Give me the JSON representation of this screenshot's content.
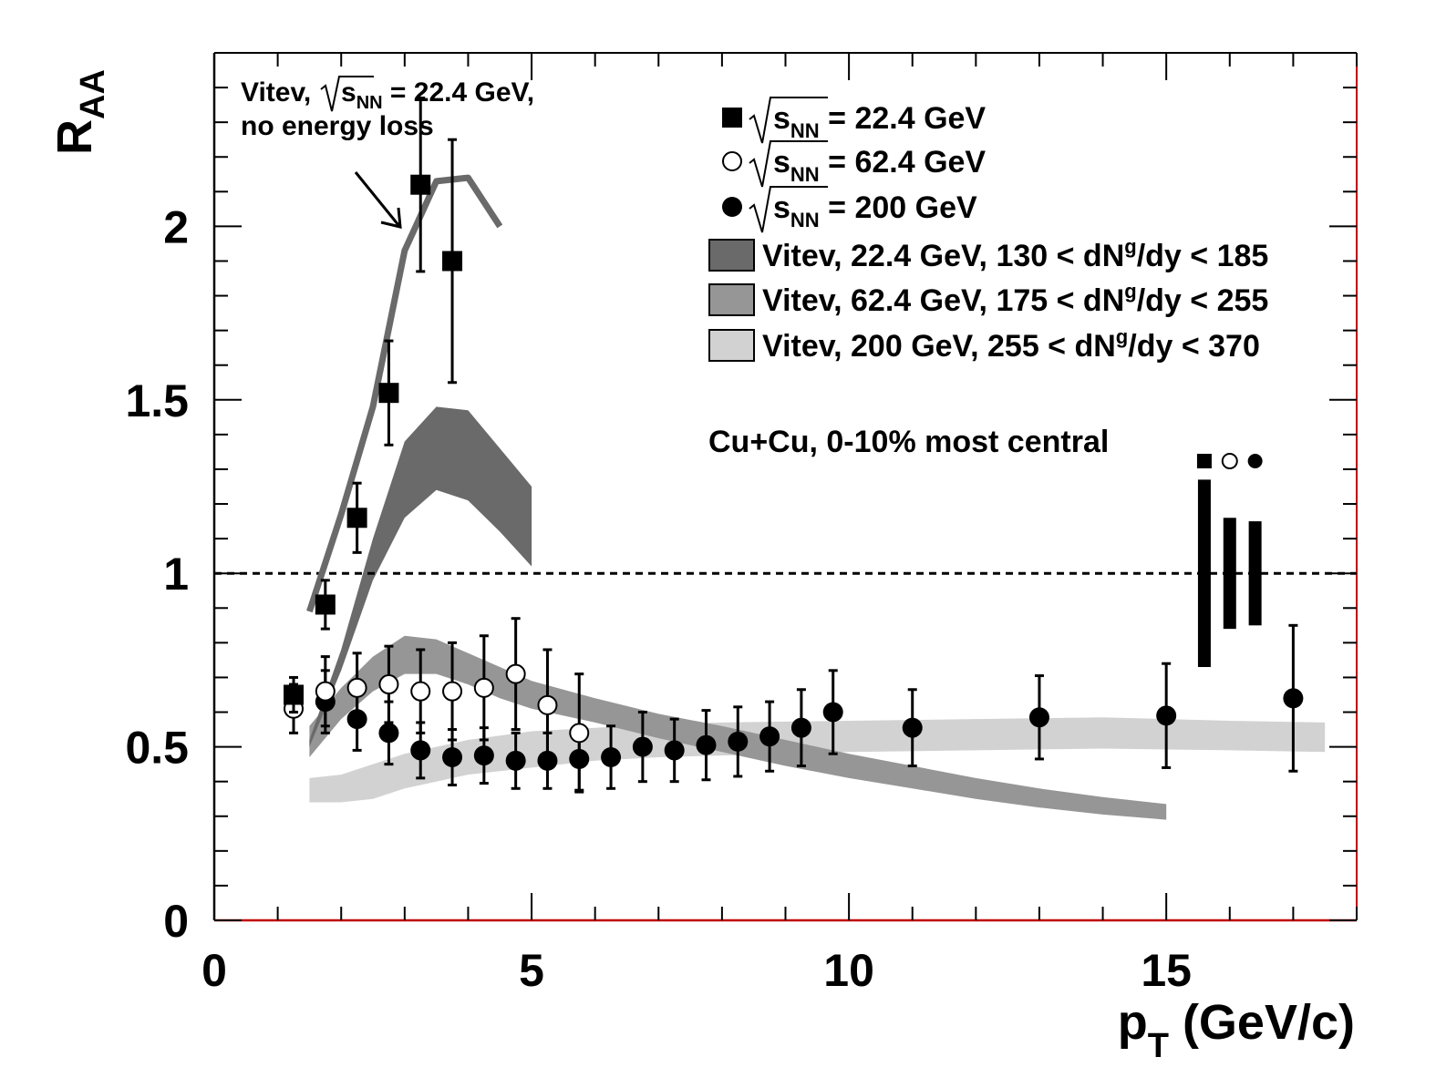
{
  "chart_data": {
    "type": "scatter",
    "xlabel": "p",
    "xlabel_sub": "T",
    "xlabel_rest": " (GeV/c)",
    "ylabel": "R",
    "ylabel_sub": "AA",
    "xlim": [
      0,
      18
    ],
    "ylim": [
      0,
      2.5
    ],
    "x_ticks": [
      0,
      5,
      10,
      15
    ],
    "y_ticks": [
      0,
      0.5,
      1,
      1.5,
      2
    ],
    "y_tick_labels": [
      "0",
      "0.5",
      "1",
      "1.5",
      "2"
    ],
    "reference_line": 1,
    "legend": [
      {
        "marker": "square",
        "pre": "s",
        "sub": "NN",
        "post": " = 22.4 GeV"
      },
      {
        "marker": "open-circle",
        "pre": "s",
        "sub": "NN",
        "post": " = 62.4 GeV"
      },
      {
        "marker": "circle",
        "pre": "s",
        "sub": "NN",
        "post": " = 200 GeV"
      },
      {
        "marker": "band",
        "color": "#6a6a6a",
        "pre": "Vitev, 22.4 GeV, 130 < dN",
        "sup": "g",
        "post": "/dy < 185"
      },
      {
        "marker": "band",
        "color": "#969696",
        "pre": "Vitev, 62.4 GeV, 175 < dN",
        "sup": "g",
        "post": "/dy < 255"
      },
      {
        "marker": "band",
        "color": "#d2d2d2",
        "pre": "Vitev, 200 GeV, 255 < dN",
        "sup": "g",
        "post": "/dy < 370"
      }
    ],
    "annotation_noloss": {
      "line1_pre": "Vitev,",
      "line1_s": "s",
      "line1_sub": "NN",
      "line1_post": " = 22.4 GeV,",
      "line2": "no energy loss"
    },
    "annotation_system": "Cu+Cu, 0-10% most central",
    "series": [
      {
        "name": "22.4 GeV",
        "marker": "square",
        "x": [
          1.25,
          1.75,
          2.25,
          2.75,
          3.25,
          3.75
        ],
        "y": [
          0.65,
          0.91,
          1.16,
          1.52,
          2.12,
          1.9
        ],
        "err": [
          0.05,
          0.07,
          0.1,
          0.15,
          0.25,
          0.35
        ]
      },
      {
        "name": "62.4 GeV",
        "marker": "open-circle",
        "x": [
          1.25,
          1.75,
          2.25,
          2.75,
          3.25,
          3.75,
          4.25,
          4.75,
          5.25,
          5.75
        ],
        "y": [
          0.61,
          0.66,
          0.67,
          0.68,
          0.66,
          0.66,
          0.67,
          0.71,
          0.62,
          0.54
        ],
        "err": [
          0.07,
          0.1,
          0.1,
          0.11,
          0.12,
          0.14,
          0.15,
          0.16,
          0.16,
          0.17
        ]
      },
      {
        "name": "200 GeV",
        "marker": "circle",
        "x": [
          1.75,
          2.25,
          2.75,
          3.25,
          3.75,
          4.25,
          4.75,
          5.25,
          5.75,
          6.25,
          6.75,
          7.25,
          7.75,
          8.25,
          8.75,
          9.25,
          9.75,
          11,
          13,
          15,
          17
        ],
        "y": [
          0.63,
          0.58,
          0.54,
          0.49,
          0.47,
          0.475,
          0.46,
          0.46,
          0.465,
          0.47,
          0.5,
          0.49,
          0.505,
          0.515,
          0.53,
          0.555,
          0.6,
          0.555,
          0.585,
          0.59,
          0.64
        ],
        "err": [
          0.09,
          0.09,
          0.09,
          0.08,
          0.08,
          0.08,
          0.08,
          0.08,
          0.09,
          0.09,
          0.1,
          0.09,
          0.1,
          0.1,
          0.1,
          0.11,
          0.12,
          0.11,
          0.12,
          0.15,
          0.21
        ]
      }
    ],
    "bands": [
      {
        "name": "Vitev, 22.4 GeV",
        "color": "#6a6a6a",
        "x": [
          1.5,
          2.0,
          2.5,
          3.0,
          3.5,
          4.0,
          4.5,
          5.0
        ],
        "upper": [
          0.52,
          0.78,
          1.1,
          1.38,
          1.48,
          1.47,
          1.36,
          1.25
        ],
        "lower": [
          0.5,
          0.72,
          0.98,
          1.16,
          1.24,
          1.21,
          1.12,
          1.02
        ]
      },
      {
        "name": "Vitev, 62.4 GeV",
        "color": "#969696",
        "x": [
          1.5,
          2.0,
          2.5,
          3.0,
          3.5,
          4.0,
          4.5,
          5.0,
          6.0,
          7.0,
          8.0,
          9.0,
          10.0,
          11.0,
          12.0,
          13.0,
          14.0,
          15.0
        ],
        "upper": [
          0.56,
          0.67,
          0.76,
          0.82,
          0.81,
          0.77,
          0.73,
          0.69,
          0.64,
          0.595,
          0.56,
          0.52,
          0.48,
          0.445,
          0.41,
          0.38,
          0.355,
          0.335
        ],
        "lower": [
          0.47,
          0.58,
          0.66,
          0.71,
          0.71,
          0.68,
          0.64,
          0.61,
          0.57,
          0.525,
          0.485,
          0.445,
          0.41,
          0.38,
          0.35,
          0.325,
          0.305,
          0.29
        ]
      },
      {
        "name": "Vitev, 200 GeV",
        "color": "#d2d2d2",
        "x": [
          1.5,
          2.0,
          2.5,
          3.0,
          3.5,
          4.0,
          5.0,
          6.0,
          7.0,
          8.0,
          10.0,
          12.0,
          14.0,
          16.0,
          17.5
        ],
        "upper": [
          0.41,
          0.42,
          0.45,
          0.48,
          0.5,
          0.52,
          0.545,
          0.555,
          0.565,
          0.57,
          0.575,
          0.58,
          0.585,
          0.575,
          0.57
        ],
        "lower": [
          0.34,
          0.34,
          0.35,
          0.38,
          0.4,
          0.42,
          0.44,
          0.46,
          0.47,
          0.475,
          0.485,
          0.49,
          0.495,
          0.49,
          0.485
        ]
      }
    ],
    "noloss_curve": {
      "x": [
        1.5,
        2.0,
        2.5,
        3.0,
        3.5,
        4.0,
        4.5
      ],
      "y": [
        0.89,
        1.17,
        1.48,
        1.93,
        2.13,
        2.14,
        2.0
      ]
    },
    "normalization_bars": [
      {
        "marker": "square",
        "x": 15.6,
        "low": 0.73,
        "high": 1.27
      },
      {
        "marker": "open-circle",
        "x": 16.0,
        "low": 0.84,
        "high": 1.16
      },
      {
        "marker": "circle",
        "x": 16.4,
        "low": 0.85,
        "high": 1.15
      }
    ]
  }
}
